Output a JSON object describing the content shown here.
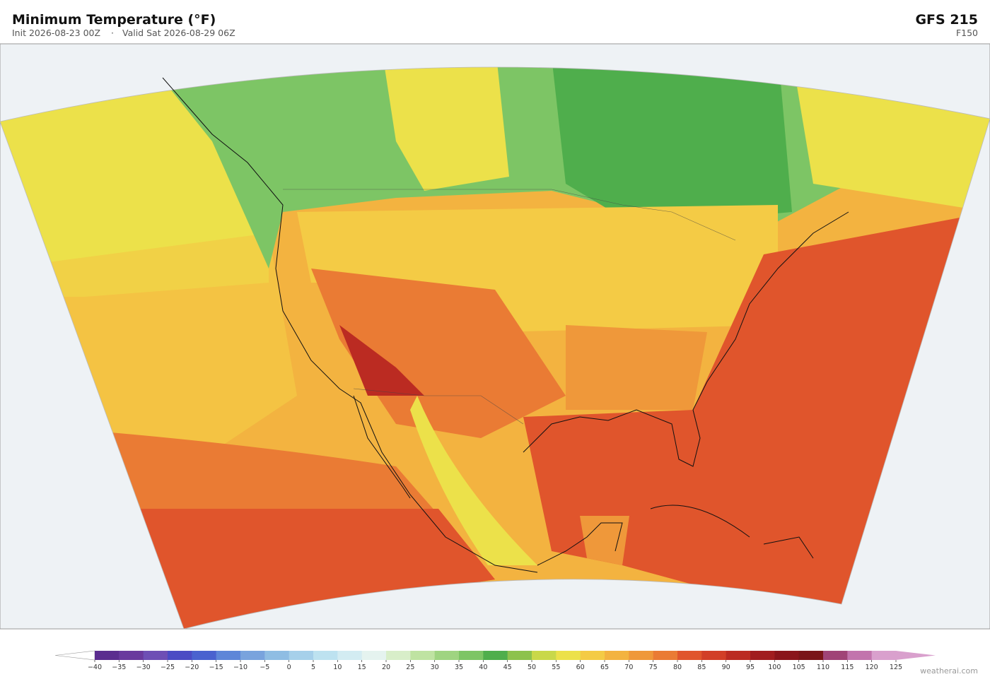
{
  "header": {
    "title": "Minimum Temperature  (°F)",
    "init": "Init 2026-08-23 00Z",
    "separator": "·",
    "valid": "Valid Sat 2026-08-29 06Z",
    "model": "GFS  215",
    "forecast_hour": "F150"
  },
  "colorbar": {
    "ticks": [
      {
        "value": -40,
        "label": "−40"
      },
      {
        "value": -35,
        "label": "−35"
      },
      {
        "value": -30,
        "label": "−30"
      },
      {
        "value": -25,
        "label": "−25"
      },
      {
        "value": -20,
        "label": "−20"
      },
      {
        "value": -15,
        "label": "−15"
      },
      {
        "value": -10,
        "label": "−10"
      },
      {
        "value": -5,
        "label": "−5"
      },
      0,
      5,
      10,
      15,
      20,
      25,
      30,
      35,
      40,
      45,
      50,
      55,
      60,
      65,
      70,
      75,
      80,
      85,
      90,
      95,
      100,
      105,
      110,
      115,
      120,
      125
    ],
    "colors": [
      "#5b2d8f",
      "#6a3a9e",
      "#6e4fb5",
      "#4b4bc4",
      "#4a62cf",
      "#5e86d8",
      "#79a3dd",
      "#8fbde3",
      "#a6d0ea",
      "#bde2f0",
      "#d3ecf2",
      "#e5f3ef",
      "#d8eec9",
      "#bfe3a2",
      "#9fd481",
      "#7dc565",
      "#4fae4c",
      "#8dc24d",
      "#c9d84a",
      "#ece14a",
      "#f4cb45",
      "#f3b340",
      "#ef983a",
      "#ea7b34",
      "#e0552c",
      "#d23f27",
      "#bb2b22",
      "#a11d1f",
      "#8a151b",
      "#7a1518",
      "#a04477",
      "#c274ad",
      "#d9a0cd"
    ],
    "under_color": "#ffffff",
    "over_color": "#d9a0cd"
  },
  "footer": {
    "credit": "weatherai.com"
  }
}
